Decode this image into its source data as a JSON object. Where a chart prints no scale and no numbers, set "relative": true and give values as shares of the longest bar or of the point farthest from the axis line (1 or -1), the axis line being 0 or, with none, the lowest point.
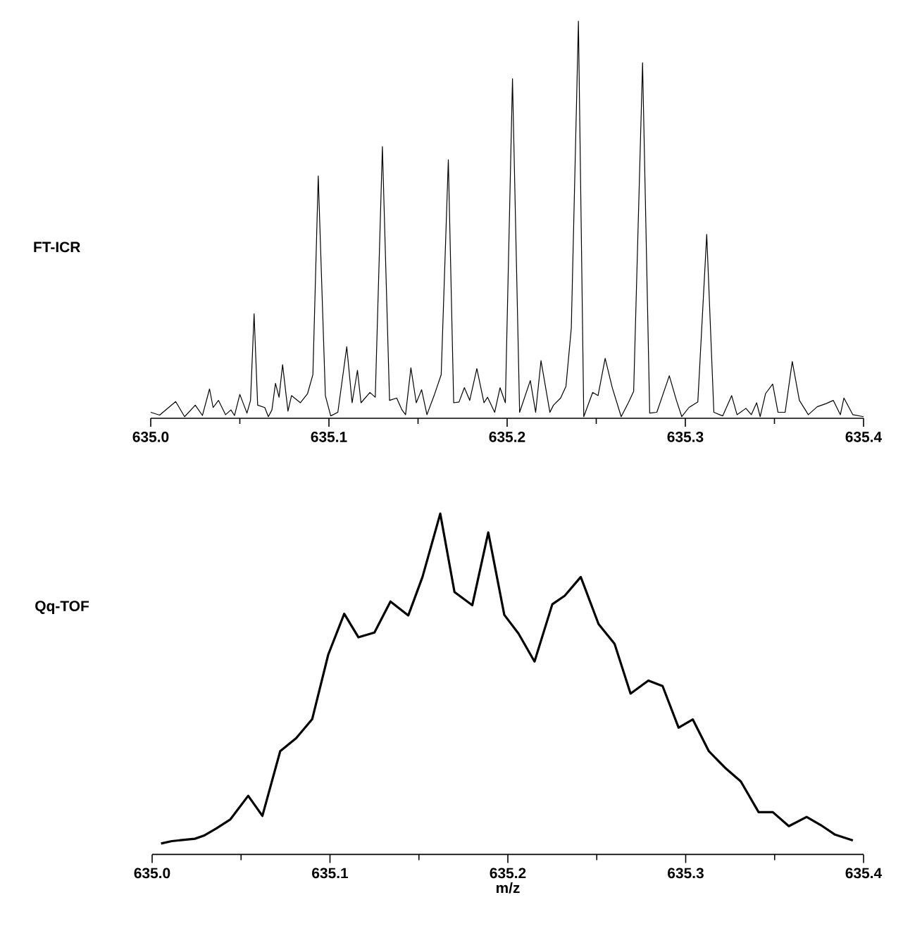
{
  "chart_data": [
    {
      "type": "line",
      "title": "FT-ICR",
      "relative": true,
      "xlim": [
        635.0,
        635.4
      ],
      "xticks": [
        {
          "value": 635.0,
          "label": "635.0"
        },
        {
          "value": 635.05,
          "label": null
        },
        {
          "value": 635.1,
          "label": "635.1"
        },
        {
          "value": 635.15,
          "label": null
        },
        {
          "value": 635.2,
          "label": "635.2"
        },
        {
          "value": 635.25,
          "label": null
        },
        {
          "value": 635.3,
          "label": "635.3"
        },
        {
          "value": 635.35,
          "label": null
        },
        {
          "value": 635.4,
          "label": "635.4"
        }
      ],
      "series": [
        {
          "color": "#000000",
          "x": [
            635.0,
            635.005,
            635.014,
            635.019,
            635.025,
            635.029,
            635.033,
            635.035,
            635.038,
            635.042,
            635.045,
            635.047,
            635.05,
            635.054,
            635.056,
            635.058,
            635.06,
            635.064,
            635.066,
            635.068,
            635.07,
            635.072,
            635.074,
            635.077,
            635.079,
            635.084,
            635.088,
            635.091,
            635.094,
            635.098,
            635.101,
            635.105,
            635.11,
            635.113,
            635.116,
            635.118,
            635.123,
            635.126,
            635.13,
            635.134,
            635.138,
            635.141,
            635.143,
            635.146,
            635.149,
            635.152,
            635.155,
            635.159,
            635.163,
            635.167,
            635.17,
            635.173,
            635.176,
            635.179,
            635.183,
            635.187,
            635.189,
            635.193,
            635.196,
            635.199,
            635.203,
            635.207,
            635.213,
            635.216,
            635.219,
            635.224,
            635.226,
            635.23,
            635.233,
            635.236,
            635.24,
            635.243,
            635.248,
            635.251,
            635.255,
            635.259,
            635.264,
            635.268,
            635.271,
            635.276,
            635.28,
            635.284,
            635.291,
            635.295,
            635.298,
            635.302,
            635.307,
            635.312,
            635.316,
            635.321,
            635.326,
            635.329,
            635.334,
            635.337,
            635.34,
            635.342,
            635.345,
            635.349,
            635.352,
            635.356,
            635.36,
            635.364,
            635.369,
            635.374,
            635.379,
            635.383,
            635.387,
            635.389,
            635.394,
            635.4
          ],
          "values": [
            0.015,
            0.008,
            0.042,
            0.004,
            0.033,
            0.007,
            0.074,
            0.027,
            0.045,
            0.009,
            0.021,
            0.007,
            0.06,
            0.013,
            0.045,
            0.263,
            0.033,
            0.027,
            0.004,
            0.021,
            0.088,
            0.053,
            0.135,
            0.018,
            0.057,
            0.039,
            0.062,
            0.11,
            0.61,
            0.057,
            0.006,
            0.015,
            0.18,
            0.039,
            0.121,
            0.039,
            0.065,
            0.053,
            0.684,
            0.045,
            0.051,
            0.021,
            0.009,
            0.127,
            0.039,
            0.072,
            0.009,
            0.057,
            0.11,
            0.651,
            0.039,
            0.041,
            0.077,
            0.045,
            0.125,
            0.039,
            0.053,
            0.015,
            0.077,
            0.039,
            0.855,
            0.015,
            0.095,
            0.015,
            0.145,
            0.015,
            0.033,
            0.051,
            0.08,
            0.227,
            1.0,
            0.004,
            0.065,
            0.057,
            0.151,
            0.077,
            0.004,
            0.039,
            0.068,
            0.895,
            0.013,
            0.015,
            0.107,
            0.045,
            0.004,
            0.027,
            0.041,
            0.463,
            0.015,
            0.006,
            0.057,
            0.009,
            0.025,
            0.009,
            0.039,
            0.004,
            0.062,
            0.086,
            0.015,
            0.015,
            0.143,
            0.045,
            0.009,
            0.029,
            0.037,
            0.045,
            0.009,
            0.051,
            0.009,
            0.004
          ]
        }
      ]
    },
    {
      "type": "line",
      "title": "Qq-TOF",
      "xlabel": "m/z",
      "relative": true,
      "xlim": [
        635.0,
        635.4
      ],
      "xticks": [
        {
          "value": 635.0,
          "label": "635.0"
        },
        {
          "value": 635.05,
          "label": null
        },
        {
          "value": 635.1,
          "label": "635.1"
        },
        {
          "value": 635.15,
          "label": null
        },
        {
          "value": 635.2,
          "label": "635.2"
        },
        {
          "value": 635.25,
          "label": null
        },
        {
          "value": 635.3,
          "label": "635.3"
        },
        {
          "value": 635.35,
          "label": null
        },
        {
          "value": 635.4,
          "label": "635.4"
        }
      ],
      "series": [
        {
          "color": "#000000",
          "x": [
            635.005,
            635.011,
            635.024,
            635.029,
            635.036,
            635.044,
            635.054,
            635.062,
            635.072,
            635.081,
            635.09,
            635.099,
            635.108,
            635.116,
            635.125,
            635.134,
            635.144,
            635.152,
            635.162,
            635.17,
            635.18,
            635.189,
            635.198,
            635.206,
            635.215,
            635.225,
            635.232,
            635.241,
            635.251,
            635.26,
            635.269,
            635.279,
            635.287,
            635.296,
            635.304,
            635.313,
            635.322,
            635.331,
            635.341,
            635.349,
            635.358,
            635.368,
            635.376,
            635.384,
            635.394
          ],
          "values": [
            0.032,
            0.039,
            0.046,
            0.055,
            0.076,
            0.103,
            0.172,
            0.113,
            0.303,
            0.341,
            0.397,
            0.586,
            0.706,
            0.637,
            0.651,
            0.742,
            0.701,
            0.814,
            1.0,
            0.77,
            0.731,
            0.945,
            0.703,
            0.648,
            0.566,
            0.734,
            0.759,
            0.814,
            0.676,
            0.618,
            0.472,
            0.51,
            0.494,
            0.372,
            0.396,
            0.303,
            0.255,
            0.214,
            0.124,
            0.124,
            0.083,
            0.11,
            0.086,
            0.058,
            0.041
          ]
        }
      ]
    }
  ]
}
